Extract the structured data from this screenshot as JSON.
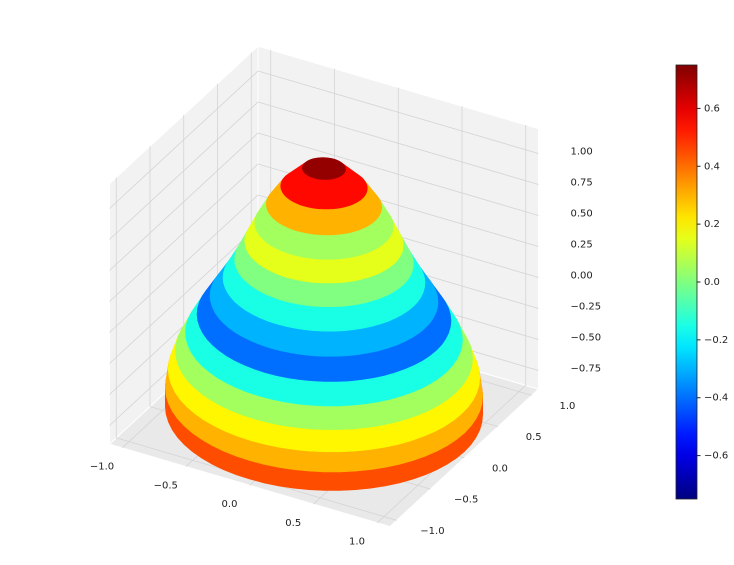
{
  "chart_data": {
    "type": "surface",
    "xlim": [
      -1.1,
      1.1
    ],
    "ylim": [
      -1.1,
      1.1
    ],
    "zlim": [
      -0.9,
      1.2
    ],
    "xticks": [
      {
        "value": -1,
        "label": "−1.0"
      },
      {
        "value": -0.5,
        "label": "−0.5"
      },
      {
        "value": 0,
        "label": "0.0"
      },
      0.5,
      {
        "value": 1,
        "label": "1.0"
      }
    ],
    "yticks": [
      {
        "value": -1,
        "label": "−1.0"
      },
      {
        "value": -0.5,
        "label": "−0.5"
      },
      {
        "value": 0,
        "label": "0.0"
      },
      0.5,
      {
        "value": 1,
        "label": "1.0"
      }
    ],
    "zticks": [
      {
        "value": -0.75,
        "label": "−0.75"
      },
      {
        "value": -0.5,
        "label": "−0.50"
      },
      {
        "value": -0.25,
        "label": "−0.25"
      },
      {
        "value": 0,
        "label": "0.00"
      },
      0.25,
      {
        "value": 0.5,
        "label": "0.50"
      },
      0.75,
      {
        "value": 1,
        "label": "1.00"
      }
    ],
    "surface": {
      "z": [
        -0.85,
        -0.7,
        -0.55,
        -0.4,
        -0.25,
        -0.1,
        0.05,
        0.2,
        0.35,
        0.5,
        0.65,
        0.8,
        0.95,
        1.1
      ],
      "radius": [
        1.1,
        1.1,
        1.08,
        1.03,
        0.96,
        0.88,
        0.79,
        0.7,
        0.62,
        0.55,
        0.48,
        0.4,
        0.3,
        0.15
      ],
      "values": [
        0.45,
        0.3,
        0.2,
        0.05,
        -0.15,
        -0.4,
        -0.3,
        -0.15,
        0.0,
        0.15,
        0.05,
        0.3,
        0.55,
        0.72
      ]
    },
    "colormap": "jet",
    "clim": [
      -0.75,
      0.75
    ],
    "cticks": [
      {
        "value": -0.6,
        "label": "−0.6"
      },
      {
        "value": -0.4,
        "label": "−0.4"
      },
      {
        "value": -0.2,
        "label": "−0.2"
      },
      {
        "value": 0,
        "label": "0.0"
      },
      0.2,
      0.4,
      0.6
    ]
  }
}
